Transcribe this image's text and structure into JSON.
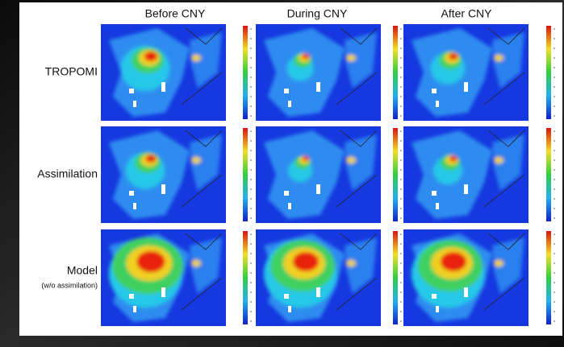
{
  "columns": [
    "Before CNY",
    "During CNY",
    "After CNY"
  ],
  "rows": [
    {
      "label": "TROPOMI"
    },
    {
      "label": "Assimilation"
    },
    {
      "label": "Model",
      "sublabel": "(w/o assimilation)"
    }
  ]
}
